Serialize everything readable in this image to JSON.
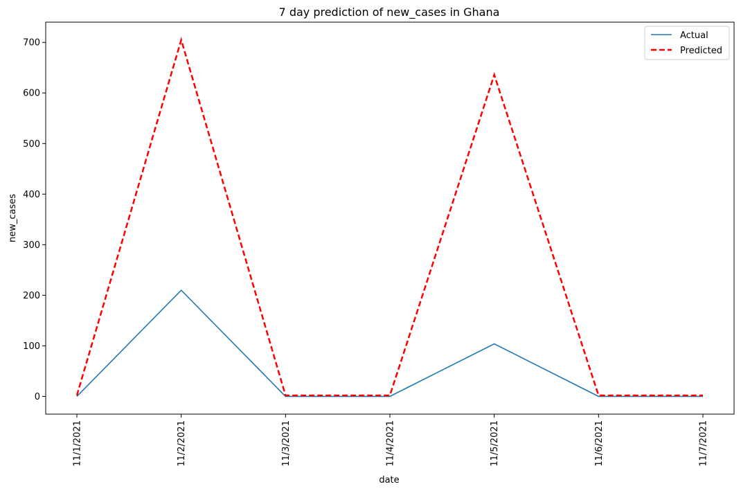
{
  "chart_data": {
    "type": "line",
    "title": "7 day prediction of new_cases in Ghana",
    "xlabel": "date",
    "ylabel": "new_cases",
    "categories": [
      "11/1/2021",
      "11/2/2021",
      "11/3/2021",
      "11/4/2021",
      "11/5/2021",
      "11/6/2021",
      "11/7/2021"
    ],
    "series": [
      {
        "name": "Actual",
        "values": [
          0,
          210,
          0,
          0,
          104,
          0,
          0
        ],
        "color": "#1f77b4",
        "style": "solid"
      },
      {
        "name": "Predicted",
        "values": [
          2,
          705,
          2,
          2,
          636,
          2,
          2
        ],
        "color": "#ff0000",
        "style": "dashed"
      }
    ],
    "y_ticks": [
      0,
      100,
      200,
      300,
      400,
      500,
      600,
      700
    ],
    "ylim": [
      -35,
      740
    ],
    "grid": false,
    "legend_position": "top-right"
  }
}
